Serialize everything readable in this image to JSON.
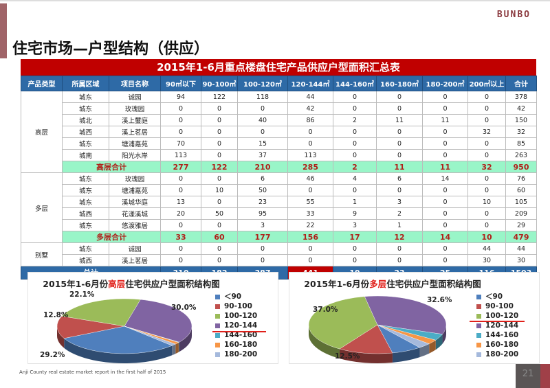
{
  "logo": "BUNBO",
  "title": "住宅市场—户型结构（供应）",
  "table": {
    "title": "2015年1-6月重点楼盘住宅产品供应户型面积汇总表",
    "headers": [
      "产品类型",
      "所属区域",
      "项目名称",
      "90㎡以下",
      "90-100㎡",
      "100-120㎡",
      "120-144㎡",
      "144-160㎡",
      "160-180㎡",
      "180-200㎡",
      "200㎡以上",
      "合计"
    ],
    "groups": [
      {
        "type": "高层",
        "rows": [
          [
            "城东",
            "诚园",
            "94",
            "122",
            "118",
            "44",
            "0",
            "0",
            "0",
            "0",
            "378"
          ],
          [
            "城东",
            "玫瑰园",
            "0",
            "0",
            "0",
            "42",
            "0",
            "0",
            "0",
            "0",
            "42"
          ],
          [
            "城北",
            "溪上璽庭",
            "0",
            "0",
            "40",
            "86",
            "2",
            "11",
            "11",
            "0",
            "150"
          ],
          [
            "城西",
            "溪上茗居",
            "0",
            "0",
            "0",
            "0",
            "0",
            "0",
            "0",
            "32",
            "32"
          ],
          [
            "城东",
            "塘浦嘉苑",
            "70",
            "0",
            "15",
            "0",
            "0",
            "0",
            "0",
            "0",
            "85"
          ],
          [
            "城南",
            "阳光水岸",
            "113",
            "0",
            "37",
            "113",
            "0",
            "0",
            "0",
            "0",
            "263"
          ]
        ],
        "subtotal": [
          "高层合计",
          "277",
          "122",
          "210",
          "285",
          "2",
          "11",
          "11",
          "32",
          "950"
        ]
      },
      {
        "type": "多层",
        "rows": [
          [
            "城东",
            "玫瑰园",
            "0",
            "0",
            "6",
            "46",
            "4",
            "6",
            "14",
            "0",
            "76"
          ],
          [
            "城东",
            "塘浦嘉苑",
            "0",
            "10",
            "50",
            "0",
            "0",
            "0",
            "0",
            "0",
            "60"
          ],
          [
            "城东",
            "溪城华庭",
            "13",
            "0",
            "23",
            "55",
            "1",
            "3",
            "0",
            "10",
            "105"
          ],
          [
            "城西",
            "花漾溪城",
            "20",
            "50",
            "95",
            "33",
            "9",
            "2",
            "0",
            "0",
            "209"
          ],
          [
            "城东",
            "悠渡雅居",
            "0",
            "0",
            "3",
            "22",
            "3",
            "1",
            "0",
            "0",
            "29"
          ]
        ],
        "subtotal": [
          "多层合计",
          "33",
          "60",
          "177",
          "156",
          "17",
          "12",
          "14",
          "10",
          "479"
        ]
      },
      {
        "type": "别墅",
        "rows": [
          [
            "城东",
            "诚园",
            "0",
            "0",
            "0",
            "0",
            "0",
            "0",
            "0",
            "44",
            "44"
          ],
          [
            "城西",
            "溪上茗居",
            "0",
            "0",
            "0",
            "0",
            "0",
            "0",
            "0",
            "30",
            "30"
          ]
        ]
      }
    ],
    "total": [
      "总计",
      "310",
      "182",
      "387",
      "441",
      "19",
      "23",
      "25",
      "116",
      "1503"
    ],
    "highlight_color": "#c00000"
  },
  "chart_data": [
    {
      "type": "pie",
      "title_pre": "2015年1-6月份",
      "title_hl": "高层",
      "title_post": "住宅供应户型面积结构图",
      "categories": [
        "＜90",
        "90-100",
        "100-120",
        "120-144",
        "144-160",
        "160-180",
        "180-200"
      ],
      "values": [
        277,
        122,
        210,
        285,
        2,
        11,
        11
      ],
      "labels": {
        "0": "29.2%",
        "1": "12.8%",
        "2": "22.1%",
        "3": "30.0%"
      },
      "colors": [
        "#4f7fbd",
        "#c0504d",
        "#9bbb59",
        "#8064a2",
        "#4bacc6",
        "#f79646",
        "#a5b9dc"
      ],
      "legend": "right",
      "underlined": "120-144"
    },
    {
      "type": "pie",
      "title_pre": "2015年1-6月份",
      "title_hl": "多层",
      "title_post": "住宅供应户型面积结构图",
      "categories": [
        "＜90",
        "90-100",
        "100-120",
        "120-144",
        "144-160",
        "160-180",
        "180-200"
      ],
      "values": [
        33,
        60,
        177,
        156,
        17,
        12,
        14
      ],
      "labels": {
        "1": "12.5%",
        "2": "37.0%",
        "3": "32.6%"
      },
      "colors": [
        "#4f7fbd",
        "#c0504d",
        "#9bbb59",
        "#8064a2",
        "#4bacc6",
        "#f79646",
        "#a5b9dc"
      ],
      "legend": "right",
      "underlined": "100-120"
    }
  ],
  "footer": "Anji County real estate market report in the first half of 2015",
  "page_number": "21"
}
